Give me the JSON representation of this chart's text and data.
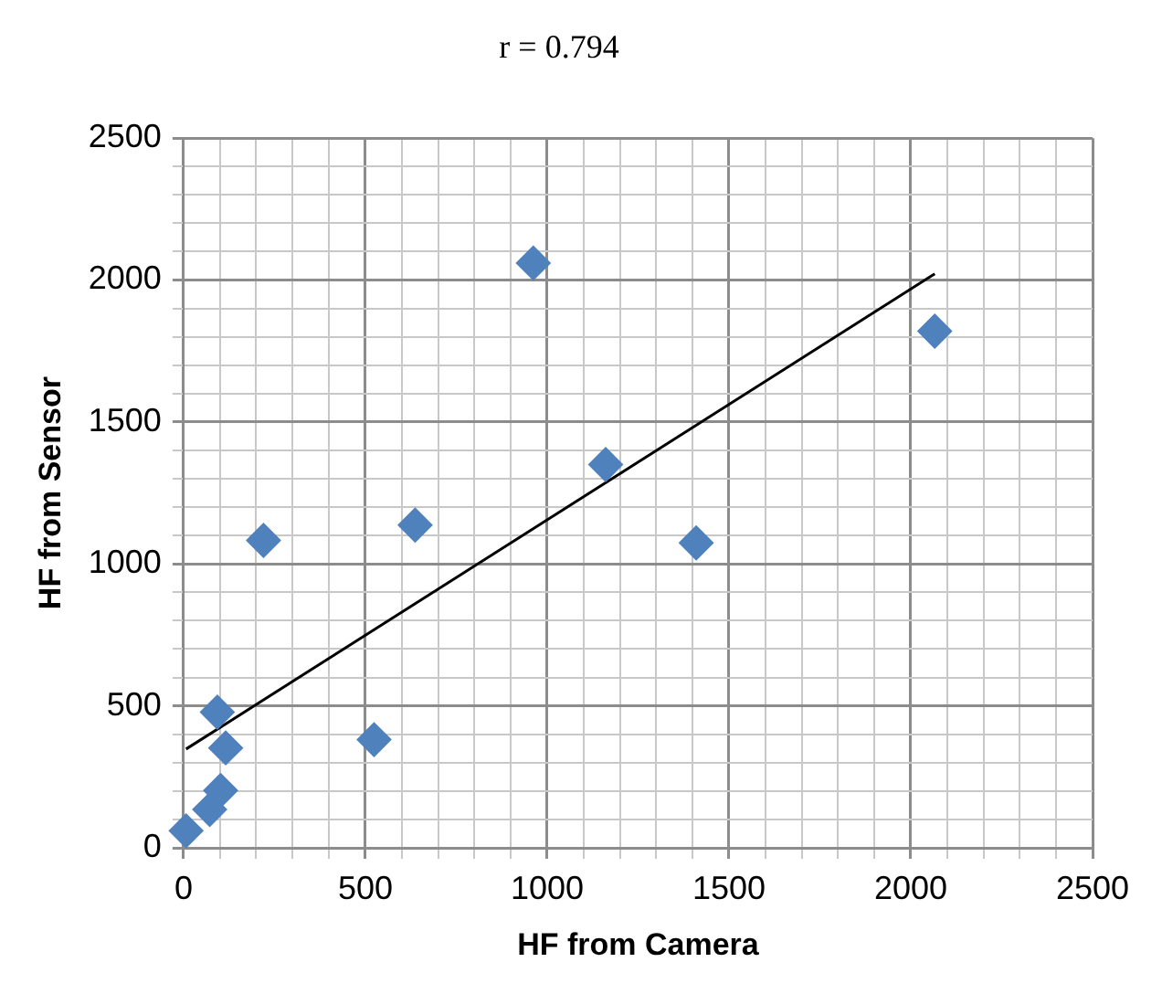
{
  "chart_data": {
    "type": "scatter",
    "title": "r = 0.794",
    "xlabel": "HF from Camera",
    "ylabel": "HF from Sensor",
    "series": [
      {
        "color": "#4f81bd",
        "marker": "diamond",
        "x": [
          7,
          72,
          102,
          116,
          93,
          220,
          524,
          637,
          962,
          1161,
          1410,
          2066
        ],
        "values": [
          60,
          135,
          202,
          352,
          478,
          1083,
          381,
          1137,
          2060,
          1350,
          1074,
          1820
        ]
      },
      {
        "type": "line",
        "color": "#000000",
        "marker": "none",
        "x": [
          7,
          2066
        ],
        "values": [
          348,
          2022
        ]
      }
    ],
    "xlim": [
      0,
      2500
    ],
    "ylim": [
      0,
      2500
    ],
    "xticks": [
      0,
      {
        "value": 100,
        "label": null
      },
      {
        "value": 200,
        "label": null
      },
      {
        "value": 300,
        "label": null
      },
      {
        "value": 400,
        "label": null
      },
      500,
      {
        "value": 600,
        "label": null
      },
      {
        "value": 700,
        "label": null
      },
      {
        "value": 800,
        "label": null
      },
      {
        "value": 900,
        "label": null
      },
      1000,
      {
        "value": 1100,
        "label": null
      },
      {
        "value": 1200,
        "label": null
      },
      {
        "value": 1300,
        "label": null
      },
      {
        "value": 1400,
        "label": null
      },
      1500,
      {
        "value": 1600,
        "label": null
      },
      {
        "value": 1700,
        "label": null
      },
      {
        "value": 1800,
        "label": null
      },
      {
        "value": 1900,
        "label": null
      },
      2000,
      {
        "value": 2100,
        "label": null
      },
      {
        "value": 2200,
        "label": null
      },
      {
        "value": 2300,
        "label": null
      },
      {
        "value": 2400,
        "label": null
      },
      2500
    ],
    "yticks": [
      0,
      {
        "value": 100,
        "label": null
      },
      {
        "value": 200,
        "label": null
      },
      {
        "value": 300,
        "label": null
      },
      {
        "value": 400,
        "label": null
      },
      500,
      {
        "value": 600,
        "label": null
      },
      {
        "value": 700,
        "label": null
      },
      {
        "value": 800,
        "label": null
      },
      {
        "value": 900,
        "label": null
      },
      1000,
      {
        "value": 1100,
        "label": null
      },
      {
        "value": 1200,
        "label": null
      },
      {
        "value": 1300,
        "label": null
      },
      {
        "value": 1400,
        "label": null
      },
      1500,
      {
        "value": 1600,
        "label": null
      },
      {
        "value": 1700,
        "label": null
      },
      {
        "value": 1800,
        "label": null
      },
      {
        "value": 1900,
        "label": null
      },
      2000,
      {
        "value": 2100,
        "label": null
      },
      {
        "value": 2200,
        "label": null
      },
      {
        "value": 2300,
        "label": null
      },
      {
        "value": 2400,
        "label": null
      },
      2500
    ],
    "grid": true,
    "legend": false
  }
}
